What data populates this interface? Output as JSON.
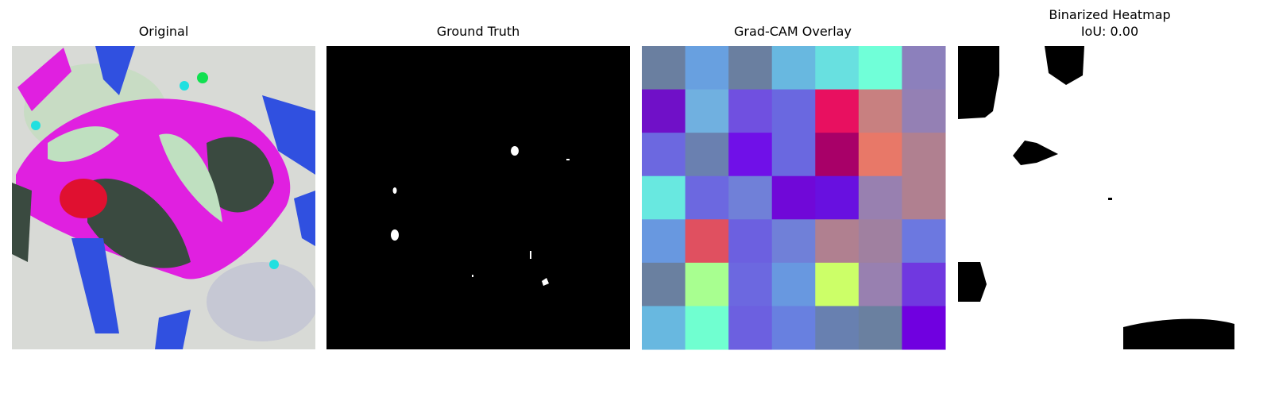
{
  "panels": [
    {
      "title": "Original"
    },
    {
      "title": "Ground Truth"
    },
    {
      "title": "Grad-CAM Overlay"
    },
    {
      "title": "Binarized Heatmap",
      "subtitle": "IoU: 0.00"
    }
  ]
}
